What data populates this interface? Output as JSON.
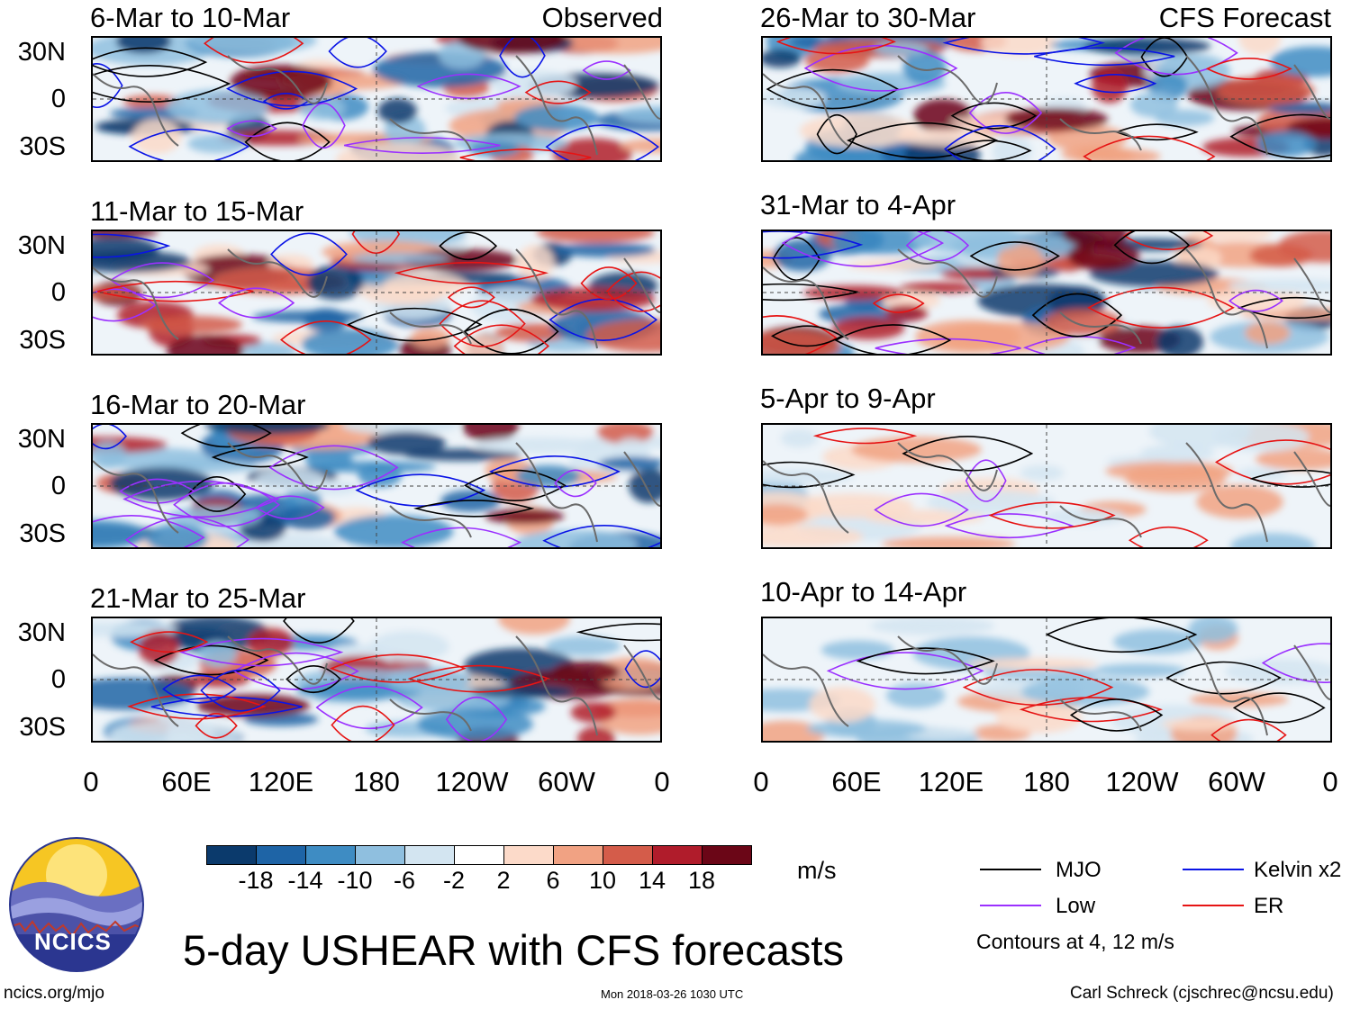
{
  "observed_label": "Observed",
  "forecast_label": "CFS Forecast",
  "lat_labels": [
    "30N",
    "0",
    "30S"
  ],
  "lon_labels": [
    "0",
    "60E",
    "120E",
    "180",
    "120W",
    "60W",
    "0"
  ],
  "panels_left": [
    {
      "title": "6-Mar to 10-Mar"
    },
    {
      "title": "11-Mar to 15-Mar"
    },
    {
      "title": "16-Mar to 20-Mar"
    },
    {
      "title": "21-Mar to 25-Mar"
    }
  ],
  "panels_right": [
    {
      "title": "26-Mar to 30-Mar"
    },
    {
      "title": "31-Mar to 4-Apr"
    },
    {
      "title": "5-Apr to 9-Apr"
    },
    {
      "title": "10-Apr to 14-Apr"
    }
  ],
  "colorbar": {
    "unit": "m/s",
    "labels": [
      "-18",
      "-14",
      "-10",
      "-6",
      "-2",
      "2",
      "6",
      "10",
      "14",
      "18"
    ],
    "colors": [
      "#0b3a6c",
      "#1e64a6",
      "#3e8cc3",
      "#8fbfdf",
      "#d3e5f1",
      "#ffffff",
      "#fcdac9",
      "#f1a283",
      "#d45c4a",
      "#b01c2b",
      "#6b0617"
    ]
  },
  "legend": {
    "items": [
      {
        "label": "MJO",
        "color": "#000000"
      },
      {
        "label": "Kelvin x2",
        "color": "#0a14e6"
      },
      {
        "label": "Low",
        "color": "#9b30ff"
      },
      {
        "label": "ER",
        "color": "#e61414"
      }
    ],
    "note": "Contours at 4, 12 m/s"
  },
  "logo_text": "NCICS",
  "main_title": "5-day USHEAR with CFS forecasts",
  "footer": {
    "url": "ncics.org/mjo",
    "timestamp": "Mon 2018-03-26 1030 UTC",
    "credit": "Carl Schreck (cjschrec@ncsu.edu)"
  }
}
